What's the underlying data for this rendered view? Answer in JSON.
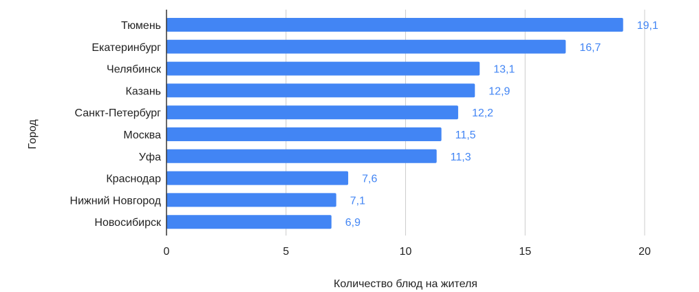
{
  "chart_data": {
    "type": "bar",
    "orientation": "horizontal",
    "categories": [
      "Тюмень",
      "Екатеринбург",
      "Челябинск",
      "Казань",
      "Санкт-Петербург",
      "Москва",
      "Уфа",
      "Краснодар",
      "Нижний Новгород",
      "Новосибирск"
    ],
    "values": [
      19.1,
      16.7,
      13.1,
      12.9,
      12.2,
      11.5,
      11.3,
      7.6,
      7.1,
      6.9
    ],
    "value_labels": [
      "19,1",
      "16,7",
      "13,1",
      "12,9",
      "12,2",
      "11,5",
      "11,3",
      "7,6",
      "7,1",
      "6,9"
    ],
    "xlabel": "Количество блюд на жителя",
    "ylabel": "Город",
    "xlim": [
      0,
      20
    ],
    "x_ticks": [
      0,
      5,
      10,
      15,
      20
    ],
    "x_tick_labels": [
      "0",
      "5",
      "10",
      "15",
      "20"
    ],
    "grid": true,
    "bar_color": "#4285f4",
    "label_color": "#4285f4"
  }
}
